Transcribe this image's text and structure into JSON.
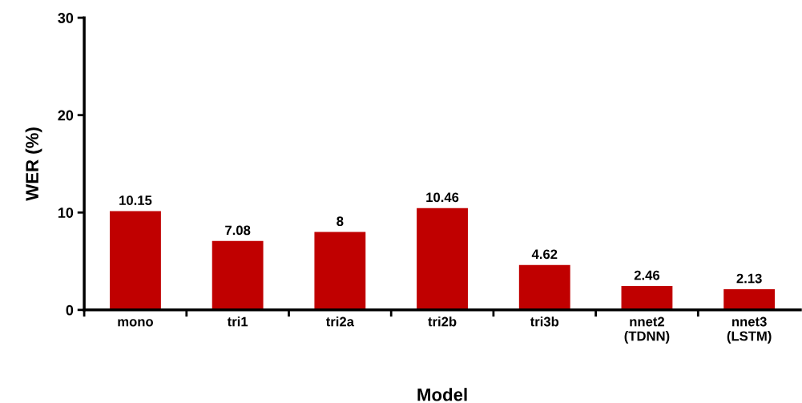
{
  "chart_data": {
    "type": "bar",
    "xlabel": "Model",
    "ylabel": "WER (%)",
    "categories": [
      "mono",
      "tri1",
      "tri2a",
      "tri2b",
      "tri3b",
      "nnet2\n(TDNN)",
      "nnet3\n(LSTM)"
    ],
    "values": [
      10.15,
      7.08,
      8,
      10.46,
      4.62,
      2.46,
      2.13
    ],
    "color": "#c00000",
    "ylim": [
      0,
      30
    ],
    "yticks": [
      0,
      10,
      20,
      30
    ],
    "grid": false,
    "data_labels": true
  }
}
